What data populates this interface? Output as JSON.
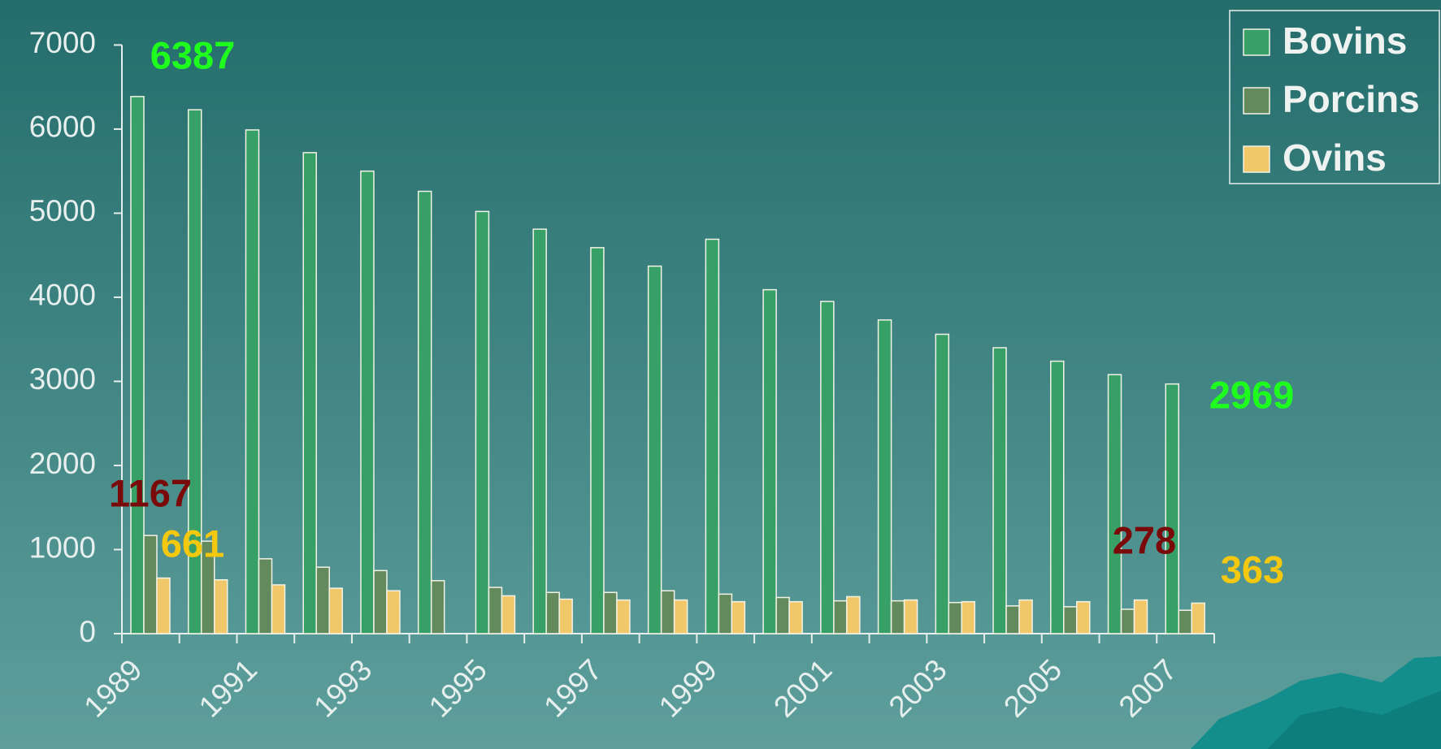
{
  "chart_data": {
    "type": "bar",
    "categories": [
      "1989",
      null,
      "1991",
      null,
      "1993",
      null,
      "1995",
      null,
      "1997",
      null,
      "1999",
      null,
      "2001",
      null,
      "2003",
      null,
      "2005",
      null,
      "2007"
    ],
    "series": [
      {
        "name": "Bovins",
        "color": "#36a066",
        "label_color": "#1eff1e",
        "values": [
          6387,
          6230,
          5990,
          5720,
          5500,
          5260,
          5020,
          4810,
          4590,
          4370,
          4690,
          4090,
          3950,
          3730,
          3560,
          3400,
          3240,
          3080,
          2969
        ]
      },
      {
        "name": "Porcins",
        "color": "#628a5c",
        "label_color": "#7a0a0a",
        "values": [
          1167,
          1100,
          890,
          790,
          750,
          630,
          550,
          490,
          490,
          510,
          470,
          430,
          390,
          390,
          370,
          330,
          320,
          290,
          278
        ]
      },
      {
        "name": "Ovins",
        "color": "#f0c86a",
        "label_color": "#f5c810",
        "values": [
          661,
          640,
          580,
          540,
          510,
          null,
          450,
          410,
          400,
          400,
          380,
          380,
          440,
          400,
          380,
          400,
          380,
          400,
          363
        ]
      }
    ],
    "labeled_points": [
      0,
      18
    ],
    "ylim": [
      0,
      7000
    ],
    "yticks": [
      0,
      1000,
      2000,
      3000,
      4000,
      5000,
      6000,
      7000
    ],
    "legend": "top-right"
  }
}
